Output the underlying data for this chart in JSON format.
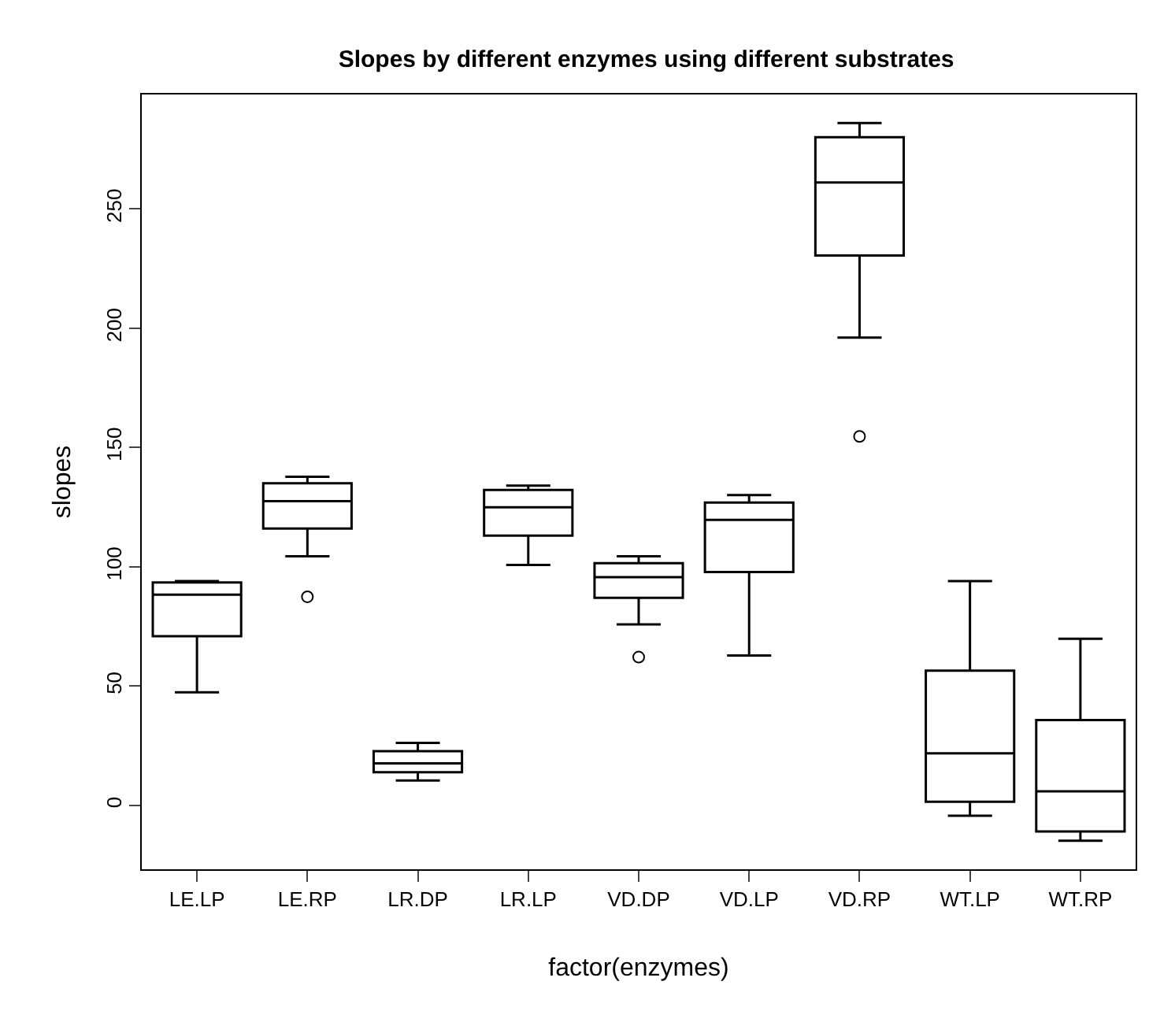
{
  "chart_data": {
    "type": "box",
    "title": "Slopes by different enzymes using different substrates",
    "xlabel": "factor(enzymes)",
    "ylabel": "slopes",
    "categories": [
      "LE.LP",
      "LE.RP",
      "LR.DP",
      "LR.LP",
      "VD.DP",
      "VD.LP",
      "VD.RP",
      "WT.LP",
      "WT.RP"
    ],
    "boxes": [
      {
        "low": 47.4,
        "q1": 70.9,
        "median": 88.3,
        "q3": 93.4,
        "high": 94
      },
      {
        "low": 104.4,
        "q1": 116,
        "median": 127.5,
        "q3": 135,
        "high": 137.7,
        "outliers": [
          87.4
        ]
      },
      {
        "low": 10.4,
        "q1": 13.9,
        "median": 17.6,
        "q3": 22.7,
        "high": 26.2
      },
      {
        "low": 100.7,
        "q1": 113,
        "median": 124.9,
        "q3": 132.2,
        "high": 134
      },
      {
        "low": 75.8,
        "q1": 87,
        "median": 95.6,
        "q3": 101.5,
        "high": 104.4,
        "outliers": [
          62.1
        ]
      },
      {
        "low": 62.8,
        "q1": 97.8,
        "median": 119.6,
        "q3": 126.9,
        "high": 130
      },
      {
        "low": 196,
        "q1": 230.4,
        "median": 261,
        "q3": 280,
        "high": 285.9,
        "outliers": [
          154.6
        ]
      },
      {
        "low": -4.4,
        "q1": 1.5,
        "median": 21.8,
        "q3": 56.4,
        "high": 94
      },
      {
        "low": -14.8,
        "q1": -11,
        "median": 5.9,
        "q3": 35.7,
        "high": 69.8
      }
    ],
    "color": "#000000",
    "ylim": [
      -26.8,
      297.9
    ],
    "yticks": [
      0,
      50,
      100,
      150,
      200,
      250
    ],
    "grid": false
  }
}
